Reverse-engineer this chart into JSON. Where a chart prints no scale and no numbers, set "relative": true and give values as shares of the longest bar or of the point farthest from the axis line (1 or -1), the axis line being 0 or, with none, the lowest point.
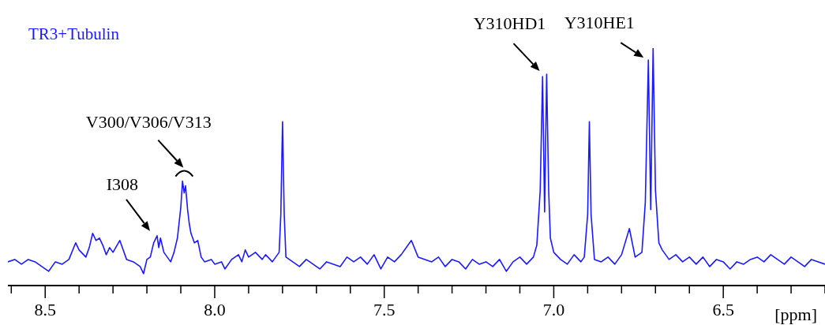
{
  "chart_data": {
    "type": "line",
    "relative": true,
    "xlabel": "[ppm]",
    "xlim": [
      8.61,
      6.2
    ],
    "xticks": [
      {
        "value": 8.6,
        "label": null
      },
      8.5,
      {
        "value": 8.4,
        "label": null
      },
      {
        "value": 8.3,
        "label": null
      },
      {
        "value": 8.2,
        "label": null
      },
      {
        "value": 8.1,
        "label": null
      },
      {
        "value": 8.0,
        "label": "8.0"
      },
      {
        "value": 7.9,
        "label": null
      },
      {
        "value": 7.8,
        "label": null
      },
      {
        "value": 7.7,
        "label": null
      },
      {
        "value": 7.6,
        "label": null
      },
      7.5,
      {
        "value": 7.4,
        "label": null
      },
      {
        "value": 7.3,
        "label": null
      },
      {
        "value": 7.2,
        "label": null
      },
      {
        "value": 7.1,
        "label": null
      },
      {
        "value": 7.0,
        "label": "7.0"
      },
      {
        "value": 6.9,
        "label": null
      },
      {
        "value": 6.8,
        "label": null
      },
      {
        "value": 6.7,
        "label": null
      },
      {
        "value": 6.6,
        "label": null
      },
      6.5,
      {
        "value": 6.4,
        "label": null
      },
      {
        "value": 6.3,
        "label": null
      },
      {
        "value": 6.2,
        "label": null
      }
    ],
    "x": [
      8.61,
      8.59,
      8.57,
      8.55,
      8.53,
      8.51,
      8.49,
      8.47,
      8.45,
      8.43,
      8.41,
      8.4,
      8.38,
      8.37,
      8.36,
      8.35,
      8.34,
      8.33,
      8.32,
      8.31,
      8.3,
      8.28,
      8.27,
      8.26,
      8.24,
      8.22,
      8.21,
      8.2,
      8.19,
      8.18,
      8.17,
      8.165,
      8.16,
      8.15,
      8.14,
      8.13,
      8.12,
      8.11,
      8.1,
      8.095,
      8.09,
      8.086,
      8.08,
      8.075,
      8.07,
      8.06,
      8.05,
      8.04,
      8.03,
      8.01,
      8.0,
      7.98,
      7.97,
      7.95,
      7.93,
      7.92,
      7.91,
      7.9,
      7.88,
      7.86,
      7.85,
      7.83,
      7.81,
      7.805,
      7.8,
      7.795,
      7.79,
      7.77,
      7.75,
      7.73,
      7.71,
      7.69,
      7.67,
      7.65,
      7.63,
      7.61,
      7.59,
      7.57,
      7.55,
      7.53,
      7.51,
      7.49,
      7.47,
      7.45,
      7.42,
      7.4,
      7.38,
      7.36,
      7.34,
      7.32,
      7.3,
      7.28,
      7.26,
      7.24,
      7.22,
      7.2,
      7.18,
      7.16,
      7.14,
      7.12,
      7.1,
      7.08,
      7.06,
      7.05,
      7.04,
      7.033,
      7.027,
      7.021,
      7.015,
      7.01,
      7.0,
      6.98,
      6.96,
      6.94,
      6.92,
      6.91,
      6.9,
      6.895,
      6.89,
      6.88,
      6.86,
      6.84,
      6.82,
      6.8,
      6.777,
      6.76,
      6.74,
      6.73,
      6.721,
      6.714,
      6.707,
      6.7,
      6.69,
      6.68,
      6.66,
      6.64,
      6.62,
      6.6,
      6.58,
      6.56,
      6.54,
      6.52,
      6.5,
      6.48,
      6.46,
      6.44,
      6.42,
      6.4,
      6.38,
      6.36,
      6.34,
      6.32,
      6.3,
      6.28,
      6.26,
      6.24,
      6.22,
      6.2
    ],
    "series": [
      {
        "name": "TR3+Tubulin",
        "color": "#1a1aff",
        "values": [
          0.1,
          0.11,
          0.09,
          0.11,
          0.1,
          0.08,
          0.06,
          0.1,
          0.09,
          0.11,
          0.18,
          0.15,
          0.12,
          0.16,
          0.22,
          0.19,
          0.2,
          0.17,
          0.13,
          0.16,
          0.14,
          0.19,
          0.15,
          0.11,
          0.1,
          0.08,
          0.05,
          0.11,
          0.12,
          0.18,
          0.21,
          0.16,
          0.2,
          0.14,
          0.12,
          0.1,
          0.14,
          0.2,
          0.33,
          0.44,
          0.39,
          0.42,
          0.32,
          0.26,
          0.22,
          0.18,
          0.19,
          0.12,
          0.1,
          0.11,
          0.09,
          0.1,
          0.07,
          0.11,
          0.13,
          0.1,
          0.15,
          0.12,
          0.14,
          0.11,
          0.13,
          0.1,
          0.14,
          0.3,
          0.69,
          0.3,
          0.12,
          0.1,
          0.08,
          0.11,
          0.09,
          0.07,
          0.1,
          0.09,
          0.08,
          0.12,
          0.1,
          0.12,
          0.09,
          0.13,
          0.07,
          0.12,
          0.1,
          0.13,
          0.19,
          0.12,
          0.11,
          0.1,
          0.12,
          0.08,
          0.11,
          0.1,
          0.07,
          0.11,
          0.09,
          0.1,
          0.08,
          0.11,
          0.06,
          0.1,
          0.12,
          0.09,
          0.12,
          0.17,
          0.4,
          0.88,
          0.31,
          0.89,
          0.4,
          0.2,
          0.14,
          0.11,
          0.09,
          0.13,
          0.1,
          0.12,
          0.3,
          0.69,
          0.3,
          0.11,
          0.1,
          0.12,
          0.09,
          0.13,
          0.24,
          0.12,
          0.14,
          0.35,
          0.95,
          0.32,
          1.0,
          0.4,
          0.18,
          0.15,
          0.11,
          0.13,
          0.1,
          0.12,
          0.09,
          0.12,
          0.08,
          0.11,
          0.1,
          0.07,
          0.1,
          0.09,
          0.11,
          0.12,
          0.1,
          0.13,
          0.11,
          0.09,
          0.12,
          0.1,
          0.08,
          0.11,
          0.1,
          0.09
        ]
      }
    ],
    "marker": "none",
    "grid": false,
    "annotations": [
      {
        "text": "I308",
        "x": 8.17,
        "y": 0.21
      },
      {
        "text": "V300/V306/V313",
        "x": 8.09,
        "y": 0.44
      },
      {
        "text": "Y310HD1",
        "x": 7.03,
        "y": 0.89
      },
      {
        "text": "Y310HE1",
        "x": 6.721,
        "y": 0.95
      }
    ]
  }
}
